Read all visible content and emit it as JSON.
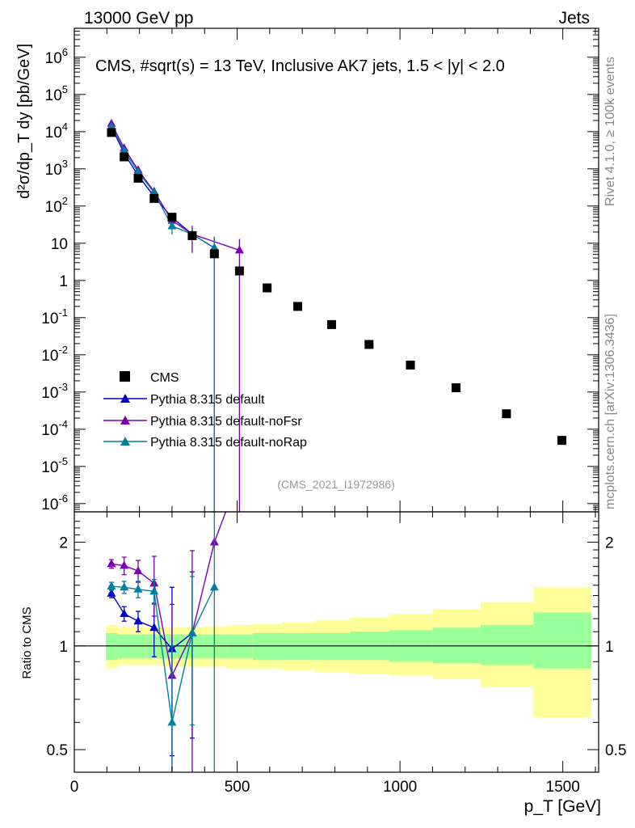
{
  "header": {
    "left": "13000 GeV pp",
    "right": "Jets",
    "side_rivet": "Rivet 4.1.0, ≥ 100k events",
    "side_mcplots": "mcplots.cern.ch [arXiv:1306.3436]",
    "plot_title": "CMS, #sqrt(s) = 13 TeV, Inclusive AK7 jets, 1.5 < |y| < 2.0",
    "analysis_id": "(CMS_2021_I1972986)"
  },
  "colors": {
    "cms": "#000000",
    "default": "#0000cc",
    "noFsr": "#7b00b4",
    "noRap": "#007f9f",
    "band_inner": "#99ff99",
    "band_outer": "#ffff99"
  },
  "chart_data": [
    {
      "type": "scatter",
      "panel": "main",
      "yscale": "log",
      "ylabel": "d²σ/dp_T dy [pb/GeV]",
      "xlim": [
        0,
        1610
      ],
      "ylim": [
        6e-07,
        6000000.0
      ],
      "ytick_labels": [
        "10^-6",
        "10^-5",
        "10^-4",
        "10^-3",
        "10^-2",
        "10^-1",
        "1",
        "10",
        "10^2",
        "10^3",
        "10^4",
        "10^5",
        "10^6"
      ],
      "series": [
        {
          "name": "CMS",
          "key": "cms",
          "marker": "square",
          "line": false,
          "x": [
            114,
            153,
            196,
            245,
            300,
            362,
            430,
            507,
            592,
            686,
            790,
            905,
            1032,
            1172,
            1327,
            1497
          ],
          "y": [
            9500,
            2100,
            560,
            160,
            50,
            16,
            5.2,
            1.8,
            0.63,
            0.2,
            0.065,
            0.019,
            0.0053,
            0.0013,
            0.00026,
            5e-05
          ]
        },
        {
          "name": "Pythia 8.315 default",
          "key": "default",
          "marker": "triangle",
          "line": true,
          "x": [
            114,
            153,
            196,
            245,
            300,
            362,
            430
          ],
          "y": [
            13500,
            2600,
            660,
            180,
            49,
            17.5,
            7.5
          ],
          "err": [
            400,
            120,
            40,
            15,
            8,
            4,
            7.5
          ]
        },
        {
          "name": "Pythia 8.315 default-noFsr",
          "key": "noFsr",
          "marker": "triangle",
          "line": true,
          "x": [
            114,
            153,
            196,
            245,
            300,
            362,
            507
          ],
          "y": [
            16500,
            3600,
            930,
            245,
            41,
            17.5,
            6.5
          ],
          "err": [
            500,
            200,
            80,
            40,
            10,
            12,
            6.5
          ]
        },
        {
          "name": "Pythia 8.315 default-noRap",
          "key": "noRap",
          "marker": "triangle",
          "line": true,
          "x": [
            114,
            153,
            196,
            245,
            300,
            362,
            430
          ],
          "y": [
            14000,
            3100,
            820,
            230,
            29,
            17.5,
            7.5
          ],
          "err": [
            450,
            150,
            60,
            25,
            12,
            5,
            7.5
          ]
        }
      ]
    },
    {
      "type": "line",
      "panel": "ratio",
      "ylabel": "Ratio to CMS",
      "ylim": [
        0.43,
        2.45
      ],
      "ytick_labels": [
        "0.5",
        "1",
        "2"
      ],
      "xlim": [
        0,
        1610
      ],
      "xlabel": "p_T [GeV]",
      "xtick_labels": [
        "0",
        "500",
        "1000",
        "1500"
      ],
      "band_edges": [
        97,
        133,
        174,
        220,
        272,
        330,
        395,
        468,
        548,
        638,
        737,
        846,
        967,
        1101,
        1248,
        1410,
        1588
      ],
      "band_inner": [
        [
          0.91,
          1.09
        ],
        [
          0.92,
          1.08
        ],
        [
          0.92,
          1.08
        ],
        [
          0.92,
          1.08
        ],
        [
          0.92,
          1.08
        ],
        [
          0.92,
          1.08
        ],
        [
          0.92,
          1.08
        ],
        [
          0.92,
          1.08
        ],
        [
          0.91,
          1.09
        ],
        [
          0.91,
          1.09
        ],
        [
          0.91,
          1.09
        ],
        [
          0.91,
          1.1
        ],
        [
          0.9,
          1.11
        ],
        [
          0.89,
          1.13
        ],
        [
          0.88,
          1.15
        ],
        [
          0.86,
          1.25
        ]
      ],
      "band_outer": [
        [
          0.86,
          1.15
        ],
        [
          0.88,
          1.13
        ],
        [
          0.88,
          1.13
        ],
        [
          0.88,
          1.13
        ],
        [
          0.87,
          1.13
        ],
        [
          0.87,
          1.13
        ],
        [
          0.87,
          1.14
        ],
        [
          0.86,
          1.15
        ],
        [
          0.86,
          1.16
        ],
        [
          0.85,
          1.17
        ],
        [
          0.84,
          1.19
        ],
        [
          0.83,
          1.21
        ],
        [
          0.82,
          1.24
        ],
        [
          0.8,
          1.28
        ],
        [
          0.76,
          1.34
        ],
        [
          0.62,
          1.48
        ]
      ],
      "series": [
        {
          "name": "Pythia 8.315 default",
          "key": "default",
          "x": [
            114,
            153,
            196,
            245,
            300,
            362
          ],
          "y": [
            1.42,
            1.24,
            1.18,
            1.13,
            0.98,
            1.09
          ],
          "err": [
            0.04,
            0.06,
            0.08,
            0.2,
            0.5,
            0.55
          ]
        },
        {
          "name": "Pythia 8.315 default-noFsr",
          "key": "noFsr",
          "x": [
            114,
            153,
            196,
            245,
            300,
            362,
            430,
            465
          ],
          "y": [
            1.73,
            1.71,
            1.65,
            1.52,
            0.82,
            1.09,
            2.0,
            2.45
          ],
          "err": [
            0.05,
            0.1,
            0.12,
            0.3,
            0.5,
            0.8,
            0,
            0
          ]
        },
        {
          "name": "Pythia 8.315 default-noRap",
          "key": "noRap",
          "x": [
            114,
            153,
            196,
            245,
            300,
            362,
            430
          ],
          "y": [
            1.49,
            1.48,
            1.46,
            1.44,
            0.6,
            1.09,
            1.48
          ],
          "err": [
            0.04,
            0.06,
            0.08,
            0.12,
            0.4,
            0.5,
            1.5
          ]
        }
      ]
    }
  ]
}
